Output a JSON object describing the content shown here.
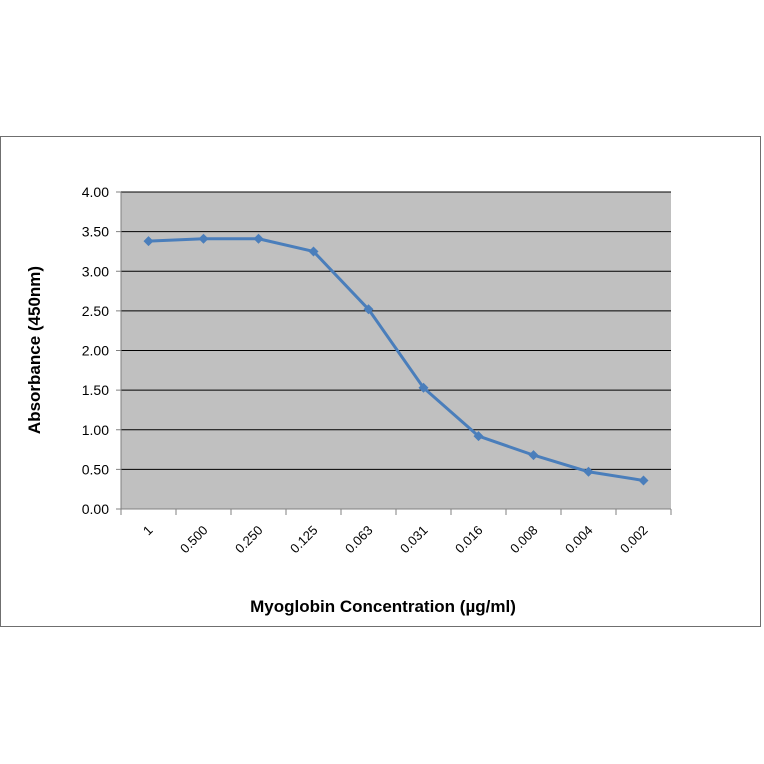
{
  "chart_data": {
    "type": "line",
    "title": "",
    "xlabel": "Myoglobin Concentration (µg/ml)",
    "ylabel": "Absorbance (450nm)",
    "categories": [
      "1",
      "0.500",
      "0.250",
      "0.125",
      "0.063",
      "0.031",
      "0.016",
      "0.008",
      "0.004",
      "0.002"
    ],
    "series": [
      {
        "values": [
          3.38,
          3.41,
          3.41,
          3.25,
          2.52,
          1.53,
          0.92,
          0.68,
          0.47,
          0.36
        ]
      }
    ],
    "ylim": [
      0,
      4
    ],
    "yticks": [
      "0.00",
      "0.50",
      "1.00",
      "1.50",
      "2.00",
      "2.50",
      "3.00",
      "3.50",
      "4.00"
    ],
    "grid": true,
    "legend": "none",
    "colors": {
      "plot_background": "#c0c0c0",
      "line": "#4a7ebb",
      "gridline": "#000000"
    }
  }
}
